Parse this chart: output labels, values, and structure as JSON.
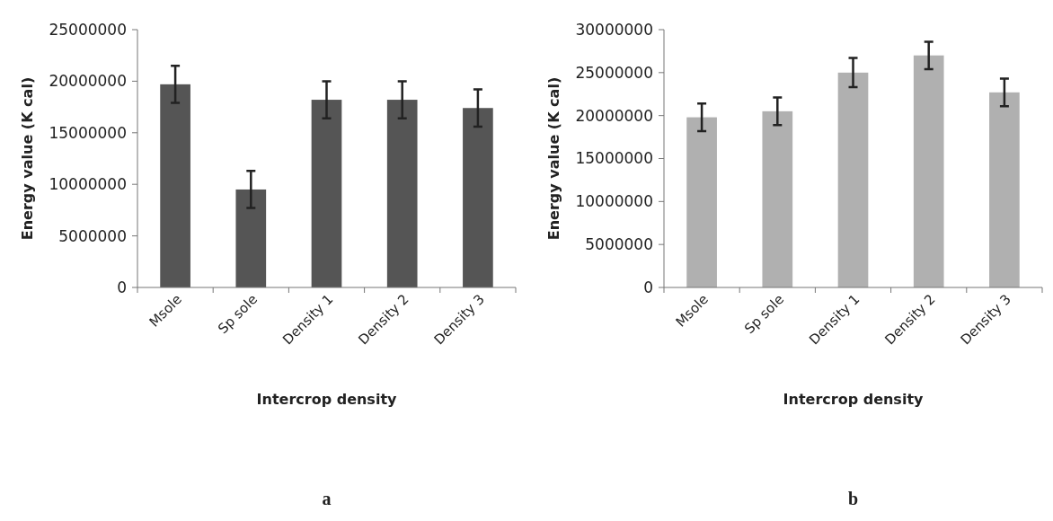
{
  "chart_data": [
    {
      "type": "bar",
      "categories": [
        "Msole",
        "Sp sole",
        "Density 1",
        "Density 2",
        "Density 3"
      ],
      "values": [
        19700000,
        9500000,
        18200000,
        18200000,
        17400000
      ],
      "errors": [
        1800000,
        1800000,
        1800000,
        1800000,
        1800000
      ],
      "color": "#555555",
      "xlabel": "Intercrop density",
      "ylabel": "Energy value (K cal)",
      "ylim": [
        0,
        25000000
      ],
      "yticks": [
        0,
        5000000,
        10000000,
        15000000,
        20000000,
        25000000
      ],
      "annotations": [
        "a"
      ]
    },
    {
      "type": "bar",
      "categories": [
        "Msole",
        "Sp sole",
        "Density 1",
        "Density 2",
        "Density 3"
      ],
      "values": [
        19800000,
        20500000,
        25000000,
        27000000,
        22700000
      ],
      "errors": [
        1600000,
        1600000,
        1700000,
        1600000,
        1600000
      ],
      "color": "#b0b0b0",
      "xlabel": "Intercrop density",
      "ylabel": "Energy value (K cal)",
      "ylim": [
        0,
        30000000
      ],
      "yticks": [
        0,
        5000000,
        10000000,
        15000000,
        20000000,
        25000000,
        30000000
      ],
      "annotations": [
        "b"
      ]
    }
  ]
}
